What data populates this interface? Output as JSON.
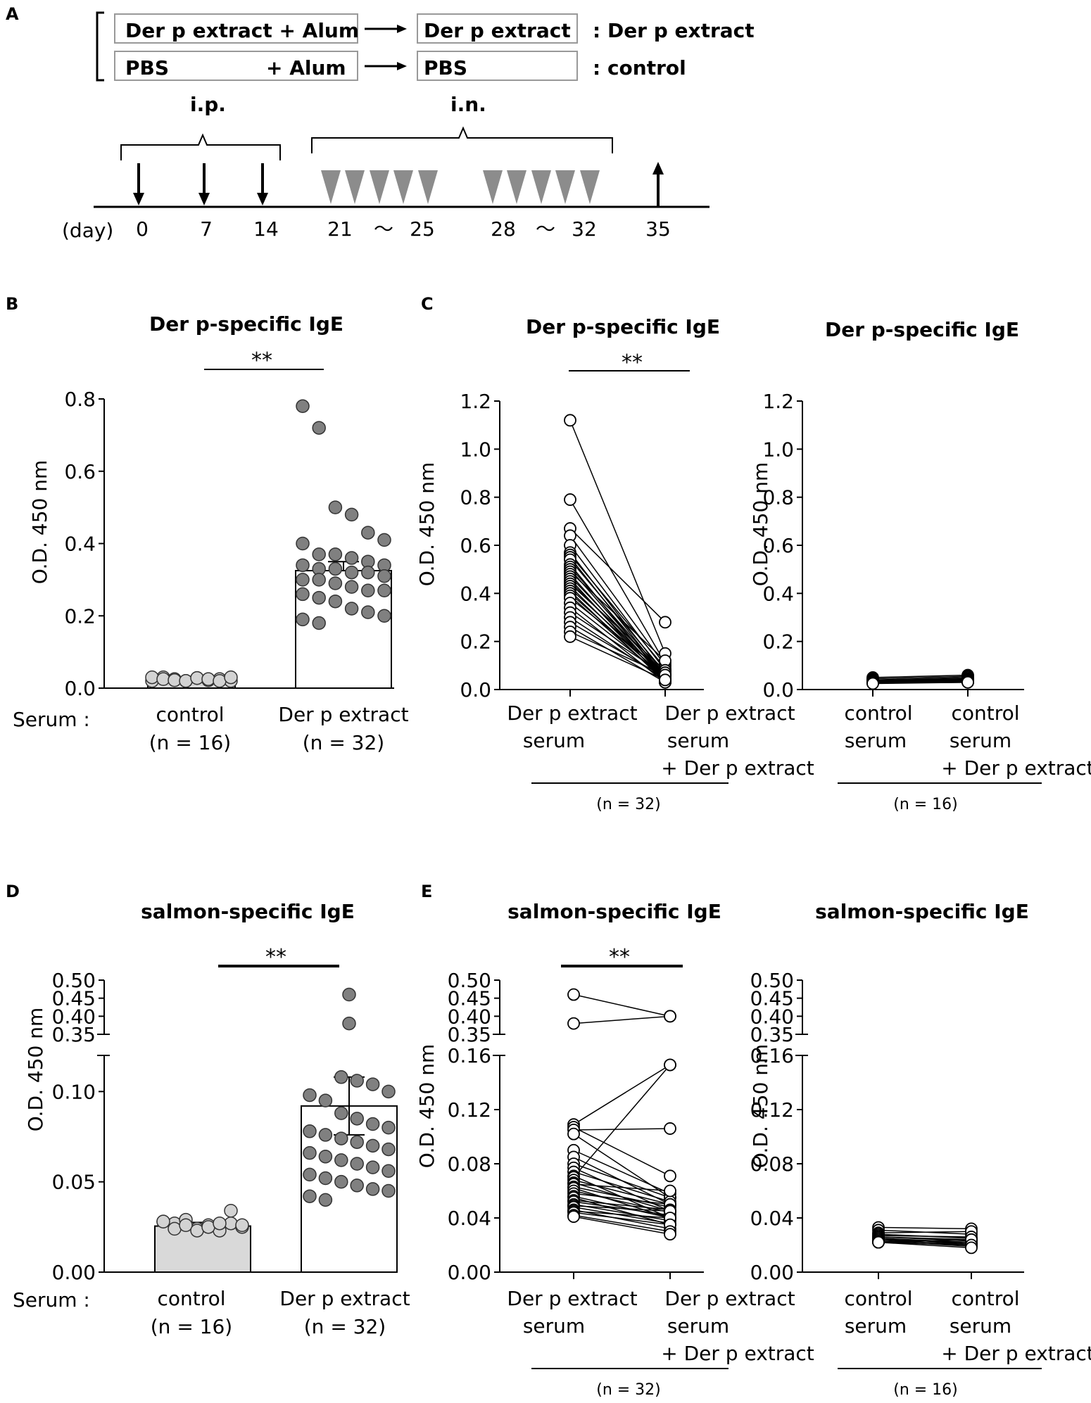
{
  "colors": {
    "grey_dot": "#808080",
    "light_dot": "#d3d3d3",
    "light_bar": "#d9d9d9",
    "triangle": "#8c8c8c",
    "line": "#000000"
  },
  "panel_a": {
    "label": "A",
    "groups": [
      {
        "box1": "Der p extract + Alum",
        "box2": "Der p extract",
        "result": ": Der p extract"
      },
      {
        "box1_left": "PBS",
        "box1_right": "+ Alum",
        "box2": "PBS",
        "result": ": control"
      }
    ],
    "ip_label": "i.p.",
    "in_label": "i.n.",
    "day_label": "(day)",
    "days": [
      "0",
      "7",
      "14",
      "21",
      "25",
      "28",
      "32",
      "35"
    ],
    "tilde": "～"
  },
  "panel_b": {
    "label": "B",
    "title": "Der p-specific IgE",
    "sig": "**",
    "ylabel": "O.D. 450 nm",
    "serum_label": "Serum :",
    "categories": [
      {
        "name": "control",
        "n": "(n = 16)"
      },
      {
        "name": "Der p extract",
        "n": "(n = 32)"
      }
    ],
    "ticks": [
      "0.0",
      "0.2",
      "0.4",
      "0.6",
      "0.8"
    ]
  },
  "panel_c": {
    "label": "C",
    "left": {
      "title": "Der p-specific IgE",
      "sig": "**",
      "ylabel": "O.D. 450 nm",
      "ticks": [
        "0.0",
        "0.2",
        "0.4",
        "0.6",
        "0.8",
        "1.0",
        "1.2"
      ],
      "cat1": [
        "Der p extract",
        "serum"
      ],
      "cat2": [
        "Der p extract",
        "serum",
        "+ Der p extract"
      ],
      "n": "(n = 32)"
    },
    "right": {
      "title": "Der p-specific IgE",
      "ylabel": "O.D. 450 nm",
      "ticks": [
        "0.0",
        "0.2",
        "0.4",
        "0.6",
        "0.8",
        "1.0",
        "1.2"
      ],
      "cat1": [
        "control",
        "serum"
      ],
      "cat2": [
        "control",
        "serum",
        "+ Der p extract"
      ],
      "n": "(n = 16)"
    }
  },
  "panel_d": {
    "label": "D",
    "title": "salmon-specific IgE",
    "sig": "**",
    "ylabel": "O.D. 450 nm",
    "serum_label": "Serum :",
    "categories": [
      {
        "name": "control",
        "n": "(n = 16)"
      },
      {
        "name": "Der p extract",
        "n": "(n = 32)"
      }
    ],
    "ticks_low": [
      "0.00",
      "0.05",
      "0.10"
    ],
    "ticks_high": [
      "0.35",
      "0.40",
      "0.45",
      "0.50"
    ]
  },
  "panel_e": {
    "label": "E",
    "left": {
      "title": "salmon-specific IgE",
      "sig": "**",
      "ylabel": "O.D. 450 nm",
      "ticks_low": [
        "0.00",
        "0.04",
        "0.08",
        "0.12",
        "0.16"
      ],
      "ticks_high": [
        "0.35",
        "0.40",
        "0.45",
        "0.50"
      ],
      "cat1": [
        "Der p extract",
        "serum"
      ],
      "cat2": [
        "Der p extract",
        "serum",
        "+ Der p extract"
      ],
      "n": "(n = 32)"
    },
    "right": {
      "title": "salmon-specific IgE",
      "ylabel": "O.D. 450 nm",
      "ticks_low": [
        "0.00",
        "0.04",
        "0.08",
        "0.12",
        "0.16"
      ],
      "ticks_high": [
        "0.35",
        "0.40",
        "0.45",
        "0.50"
      ],
      "cat1": [
        "control",
        "serum"
      ],
      "cat2": [
        "control",
        "serum",
        "+ Der p extract"
      ],
      "n": "(n = 16)"
    }
  },
  "chart_data": [
    {
      "panel": "B",
      "type": "bar",
      "title": "Der p-specific IgE",
      "xlabel": "Serum",
      "ylabel": "O.D. 450 nm",
      "ylim": [
        0,
        0.8
      ],
      "categories": [
        "control",
        "Der p extract"
      ],
      "values": [
        0.025,
        0.325
      ],
      "errors": [
        0.003,
        0.025
      ],
      "points": [
        [
          0.02,
          0.03,
          0.025,
          0.02,
          0.028,
          0.022,
          0.025,
          0.02,
          0.03,
          0.025,
          0.022,
          0.02,
          0.028,
          0.025,
          0.02,
          0.03
        ],
        [
          0.78,
          0.72,
          0.5,
          0.48,
          0.43,
          0.41,
          0.4,
          0.37,
          0.37,
          0.36,
          0.35,
          0.34,
          0.34,
          0.33,
          0.33,
          0.32,
          0.32,
          0.31,
          0.3,
          0.3,
          0.29,
          0.28,
          0.27,
          0.27,
          0.26,
          0.25,
          0.24,
          0.22,
          0.21,
          0.2,
          0.19,
          0.18
        ]
      ]
    },
    {
      "panel": "C-left",
      "type": "line",
      "title": "Der p-specific IgE",
      "ylabel": "O.D. 450 nm",
      "ylim": [
        0,
        1.2
      ],
      "categories": [
        "Der p extract serum",
        "Der p extract serum + Der p extract"
      ],
      "pairs": [
        [
          1.12,
          0.15
        ],
        [
          0.79,
          0.11
        ],
        [
          0.67,
          0.28
        ],
        [
          0.64,
          0.1
        ],
        [
          0.6,
          0.08
        ],
        [
          0.57,
          0.06
        ],
        [
          0.56,
          0.09
        ],
        [
          0.55,
          0.05
        ],
        [
          0.54,
          0.07
        ],
        [
          0.52,
          0.04
        ],
        [
          0.51,
          0.06
        ],
        [
          0.5,
          0.05
        ],
        [
          0.49,
          0.12
        ],
        [
          0.48,
          0.04
        ],
        [
          0.47,
          0.06
        ],
        [
          0.46,
          0.03
        ],
        [
          0.45,
          0.05
        ],
        [
          0.44,
          0.08
        ],
        [
          0.43,
          0.04
        ],
        [
          0.42,
          0.06
        ],
        [
          0.41,
          0.03
        ],
        [
          0.4,
          0.05
        ],
        [
          0.39,
          0.04
        ],
        [
          0.38,
          0.07
        ],
        [
          0.36,
          0.05
        ],
        [
          0.34,
          0.03
        ],
        [
          0.32,
          0.06
        ],
        [
          0.3,
          0.04
        ],
        [
          0.28,
          0.05
        ],
        [
          0.26,
          0.03
        ],
        [
          0.24,
          0.06
        ],
        [
          0.22,
          0.04
        ]
      ]
    },
    {
      "panel": "C-right",
      "type": "line",
      "title": "Der p-specific IgE",
      "ylabel": "O.D. 450 nm",
      "ylim": [
        0,
        1.2
      ],
      "categories": [
        "control serum",
        "control serum + Der p extract"
      ],
      "pairs": [
        [
          0.05,
          0.06
        ],
        [
          0.045,
          0.055
        ],
        [
          0.04,
          0.05
        ],
        [
          0.04,
          0.045
        ],
        [
          0.038,
          0.042
        ],
        [
          0.036,
          0.04
        ],
        [
          0.035,
          0.038
        ],
        [
          0.034,
          0.04
        ],
        [
          0.033,
          0.036
        ],
        [
          0.032,
          0.035
        ],
        [
          0.03,
          0.034
        ],
        [
          0.03,
          0.032
        ],
        [
          0.028,
          0.03
        ],
        [
          0.028,
          0.035
        ],
        [
          0.027,
          0.03
        ],
        [
          0.025,
          0.03
        ]
      ]
    },
    {
      "panel": "D",
      "type": "bar",
      "title": "salmon-specific IgE",
      "xlabel": "Serum",
      "ylabel": "O.D. 450 nm",
      "ylim": [
        0,
        0.5
      ],
      "axis_break": [
        0.12,
        0.35
      ],
      "categories": [
        "control",
        "Der p extract"
      ],
      "values": [
        0.0255,
        0.092
      ],
      "errors": [
        0.002,
        0.016
      ],
      "points": [
        [
          0.028,
          0.027,
          0.029,
          0.024,
          0.026,
          0.023,
          0.027,
          0.025,
          0.028,
          0.024,
          0.026,
          0.023,
          0.025,
          0.027,
          0.034,
          0.026
        ],
        [
          0.46,
          0.38,
          0.108,
          0.106,
          0.104,
          0.1,
          0.098,
          0.095,
          0.088,
          0.085,
          0.082,
          0.08,
          0.078,
          0.076,
          0.074,
          0.072,
          0.07,
          0.068,
          0.066,
          0.064,
          0.062,
          0.06,
          0.058,
          0.056,
          0.054,
          0.052,
          0.05,
          0.048,
          0.046,
          0.045,
          0.042,
          0.04
        ]
      ]
    },
    {
      "panel": "E-left",
      "type": "line",
      "title": "salmon-specific IgE",
      "ylabel": "O.D. 450 nm",
      "ylim": [
        0,
        0.5
      ],
      "axis_break": [
        0.16,
        0.35
      ],
      "categories": [
        "Der p extract serum",
        "Der p extract serum + Der p extract"
      ],
      "pairs": [
        [
          0.46,
          0.4
        ],
        [
          0.38,
          0.4
        ],
        [
          0.109,
          0.153
        ],
        [
          0.107,
          0.071
        ],
        [
          0.105,
          0.106
        ],
        [
          0.102,
          0.055
        ],
        [
          0.09,
          0.058
        ],
        [
          0.085,
          0.05
        ],
        [
          0.08,
          0.055
        ],
        [
          0.077,
          0.045
        ],
        [
          0.074,
          0.052
        ],
        [
          0.071,
          0.04
        ],
        [
          0.07,
          0.153
        ],
        [
          0.068,
          0.05
        ],
        [
          0.066,
          0.045
        ],
        [
          0.065,
          0.06
        ],
        [
          0.063,
          0.048
        ],
        [
          0.062,
          0.04
        ],
        [
          0.06,
          0.044
        ],
        [
          0.058,
          0.05
        ],
        [
          0.056,
          0.04
        ],
        [
          0.055,
          0.035
        ],
        [
          0.053,
          0.046
        ],
        [
          0.052,
          0.042
        ],
        [
          0.05,
          0.038
        ],
        [
          0.049,
          0.045
        ],
        [
          0.048,
          0.036
        ],
        [
          0.046,
          0.032
        ],
        [
          0.045,
          0.04
        ],
        [
          0.044,
          0.035
        ],
        [
          0.042,
          0.03
        ],
        [
          0.041,
          0.028
        ]
      ]
    },
    {
      "panel": "E-right",
      "type": "line",
      "title": "salmon-specific IgE",
      "ylabel": "O.D. 450 nm",
      "ylim": [
        0,
        0.5
      ],
      "axis_break": [
        0.16,
        0.35
      ],
      "categories": [
        "control serum",
        "control serum + Der p extract"
      ],
      "pairs": [
        [
          0.033,
          0.032
        ],
        [
          0.031,
          0.028
        ],
        [
          0.029,
          0.03
        ],
        [
          0.028,
          0.025
        ],
        [
          0.027,
          0.026
        ],
        [
          0.026,
          0.024
        ],
        [
          0.026,
          0.023
        ],
        [
          0.025,
          0.022
        ],
        [
          0.025,
          0.021
        ],
        [
          0.024,
          0.02
        ],
        [
          0.024,
          0.022
        ],
        [
          0.023,
          0.019
        ],
        [
          0.023,
          0.021
        ],
        [
          0.022,
          0.024
        ],
        [
          0.022,
          0.02
        ],
        [
          0.022,
          0.018
        ]
      ]
    }
  ]
}
